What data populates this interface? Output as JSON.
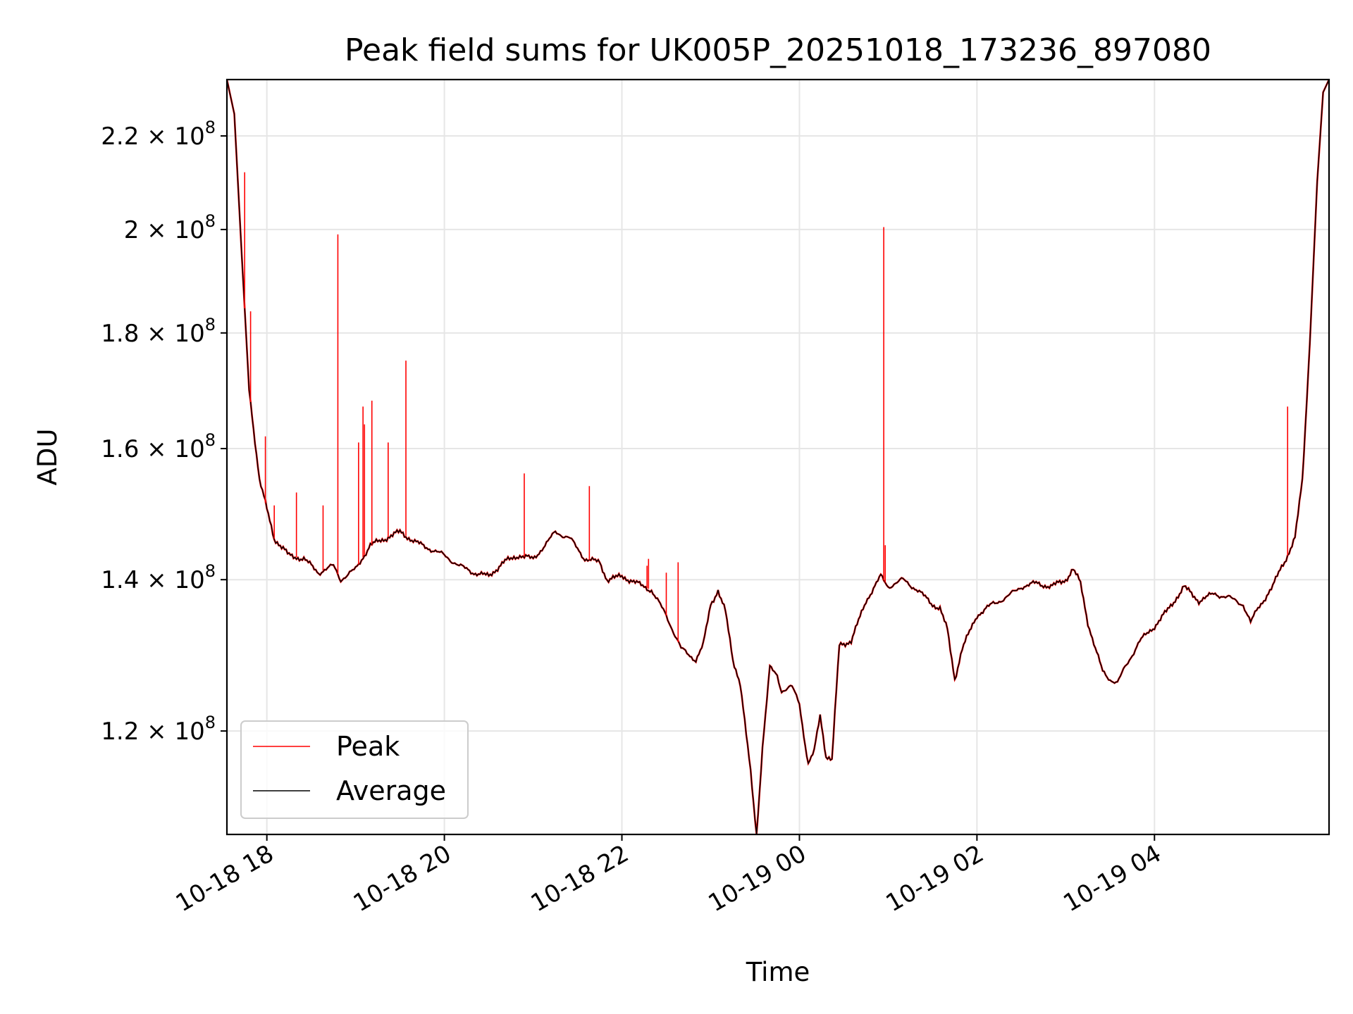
{
  "chart_data": {
    "type": "line",
    "title": "Peak field sums for UK005P_20251018_173236_897080",
    "xlabel": "Time",
    "ylabel": "ADU",
    "y_scale": "log",
    "xlim": [
      "2025-10-18 17:33",
      "2025-10-19 05:58"
    ],
    "ylim": [
      108000000,
      233000000
    ],
    "grid": true,
    "legend_position": "lower-left",
    "x_ticks": [
      {
        "t": "2025-10-18 18:00",
        "label": "10-18 18"
      },
      {
        "t": "2025-10-18 20:00",
        "label": "10-18 20"
      },
      {
        "t": "2025-10-18 22:00",
        "label": "10-18 22"
      },
      {
        "t": "2025-10-19 00:00",
        "label": "10-19 00"
      },
      {
        "t": "2025-10-19 02:00",
        "label": "10-19 02"
      },
      {
        "t": "2025-10-19 04:00",
        "label": "10-19 04"
      }
    ],
    "y_ticks": [
      {
        "value": 120000000,
        "mantissa": "1.2",
        "base": "10",
        "exp": "8"
      },
      {
        "value": 140000000,
        "mantissa": "1.4",
        "base": "10",
        "exp": "8"
      },
      {
        "value": 160000000,
        "mantissa": "1.6",
        "base": "10",
        "exp": "8"
      },
      {
        "value": 180000000,
        "mantissa": "1.8",
        "base": "10",
        "exp": "8"
      },
      {
        "value": 200000000,
        "mantissa": "2",
        "base": "10",
        "exp": "8"
      },
      {
        "value": 220000000,
        "mantissa": "2.2",
        "base": "10",
        "exp": "8"
      }
    ],
    "series": [
      {
        "name": "Average",
        "color": "#000000",
        "points": [
          [
            "2025-10-18 17:33",
            233000000
          ],
          [
            "2025-10-18 17:38",
            225000000
          ],
          [
            "2025-10-18 17:43",
            195000000
          ],
          [
            "2025-10-18 17:48",
            170000000
          ],
          [
            "2025-10-18 17:55",
            155000000
          ],
          [
            "2025-10-18 18:05",
            146000000
          ],
          [
            "2025-10-18 18:15",
            143500000
          ],
          [
            "2025-10-18 18:25",
            143000000
          ],
          [
            "2025-10-18 18:35",
            141000000
          ],
          [
            "2025-10-18 18:45",
            142000000
          ],
          [
            "2025-10-18 18:50",
            140000000
          ],
          [
            "2025-10-18 19:00",
            141500000
          ],
          [
            "2025-10-18 19:10",
            145000000
          ],
          [
            "2025-10-18 19:20",
            146000000
          ],
          [
            "2025-10-18 19:30",
            147000000
          ],
          [
            "2025-10-18 19:40",
            145500000
          ],
          [
            "2025-10-18 19:50",
            144500000
          ],
          [
            "2025-10-18 20:00",
            143500000
          ],
          [
            "2025-10-18 20:10",
            142000000
          ],
          [
            "2025-10-18 20:20",
            141000000
          ],
          [
            "2025-10-18 20:30",
            140500000
          ],
          [
            "2025-10-18 20:40",
            142500000
          ],
          [
            "2025-10-18 20:50",
            143500000
          ],
          [
            "2025-10-18 21:00",
            143000000
          ],
          [
            "2025-10-18 21:10",
            145500000
          ],
          [
            "2025-10-18 21:15",
            147000000
          ],
          [
            "2025-10-18 21:25",
            146000000
          ],
          [
            "2025-10-18 21:35",
            143000000
          ],
          [
            "2025-10-18 21:45",
            142500000
          ],
          [
            "2025-10-18 21:50",
            140000000
          ],
          [
            "2025-10-18 22:00",
            140500000
          ],
          [
            "2025-10-18 22:10",
            139500000
          ],
          [
            "2025-10-18 22:20",
            138500000
          ],
          [
            "2025-10-18 22:30",
            135000000
          ],
          [
            "2025-10-18 22:40",
            130500000
          ],
          [
            "2025-10-18 22:50",
            129000000
          ],
          [
            "2025-10-18 22:55",
            131000000
          ],
          [
            "2025-10-18 23:00",
            136500000
          ],
          [
            "2025-10-18 23:05",
            138500000
          ],
          [
            "2025-10-18 23:10",
            135500000
          ],
          [
            "2025-10-18 23:15",
            129000000
          ],
          [
            "2025-10-18 23:20",
            126000000
          ],
          [
            "2025-10-18 23:27",
            115000000
          ],
          [
            "2025-10-18 23:31",
            108000000
          ],
          [
            "2025-10-18 23:35",
            118000000
          ],
          [
            "2025-10-18 23:40",
            128000000
          ],
          [
            "2025-10-18 23:45",
            127000000
          ],
          [
            "2025-10-18 23:48",
            125000000
          ],
          [
            "2025-10-18 23:55",
            125500000
          ],
          [
            "2025-10-19 00:00",
            123500000
          ],
          [
            "2025-10-19 00:03",
            119500000
          ],
          [
            "2025-10-19 00:06",
            116000000
          ],
          [
            "2025-10-19 00:10",
            117500000
          ],
          [
            "2025-10-19 00:14",
            122000000
          ],
          [
            "2025-10-19 00:18",
            117000000
          ],
          [
            "2025-10-19 00:22",
            116500000
          ],
          [
            "2025-10-19 00:27",
            131000000
          ],
          [
            "2025-10-19 00:35",
            131500000
          ],
          [
            "2025-10-19 00:45",
            137000000
          ],
          [
            "2025-10-19 00:55",
            140500000
          ],
          [
            "2025-10-19 01:00",
            139000000
          ],
          [
            "2025-10-19 01:10",
            140000000
          ],
          [
            "2025-10-19 01:20",
            138500000
          ],
          [
            "2025-10-19 01:30",
            136500000
          ],
          [
            "2025-10-19 01:35",
            136000000
          ],
          [
            "2025-10-19 01:40",
            133000000
          ],
          [
            "2025-10-19 01:45",
            126500000
          ],
          [
            "2025-10-19 01:50",
            130500000
          ],
          [
            "2025-10-19 02:00",
            135000000
          ],
          [
            "2025-10-19 02:10",
            136500000
          ],
          [
            "2025-10-19 02:20",
            137500000
          ],
          [
            "2025-10-19 02:30",
            139000000
          ],
          [
            "2025-10-19 02:40",
            139500000
          ],
          [
            "2025-10-19 02:50",
            139000000
          ],
          [
            "2025-10-19 03:00",
            140000000
          ],
          [
            "2025-10-19 03:05",
            141500000
          ],
          [
            "2025-10-19 03:10",
            139500000
          ],
          [
            "2025-10-19 03:15",
            134000000
          ],
          [
            "2025-10-19 03:20",
            130500000
          ],
          [
            "2025-10-19 03:25",
            127500000
          ],
          [
            "2025-10-19 03:30",
            126500000
          ],
          [
            "2025-10-19 03:35",
            126000000
          ],
          [
            "2025-10-19 03:40",
            128000000
          ],
          [
            "2025-10-19 03:50",
            131500000
          ],
          [
            "2025-10-19 04:00",
            133500000
          ],
          [
            "2025-10-19 04:10",
            136000000
          ],
          [
            "2025-10-19 04:20",
            139000000
          ],
          [
            "2025-10-19 04:30",
            137000000
          ],
          [
            "2025-10-19 04:40",
            138000000
          ],
          [
            "2025-10-19 04:50",
            137500000
          ],
          [
            "2025-10-19 05:00",
            136500000
          ],
          [
            "2025-10-19 05:05",
            134000000
          ],
          [
            "2025-10-19 05:10",
            136000000
          ],
          [
            "2025-10-19 05:20",
            139000000
          ],
          [
            "2025-10-19 05:25",
            141500000
          ],
          [
            "2025-10-19 05:30",
            143500000
          ],
          [
            "2025-10-19 05:35",
            146000000
          ],
          [
            "2025-10-19 05:40",
            155000000
          ],
          [
            "2025-10-19 05:45",
            178000000
          ],
          [
            "2025-10-19 05:50",
            210000000
          ],
          [
            "2025-10-19 05:54",
            230000000
          ],
          [
            "2025-10-19 05:58",
            233000000
          ]
        ]
      },
      {
        "name": "Peak",
        "color": "#ff0000",
        "spikes": [
          [
            "2025-10-18 17:45",
            212000000
          ],
          [
            "2025-10-18 17:49",
            184000000
          ],
          [
            "2025-10-18 17:59",
            162000000
          ],
          [
            "2025-10-18 18:05",
            151000000
          ],
          [
            "2025-10-18 18:20",
            153000000
          ],
          [
            "2025-10-18 18:38",
            151000000
          ],
          [
            "2025-10-18 18:48",
            199000000
          ],
          [
            "2025-10-18 19:02",
            161000000
          ],
          [
            "2025-10-18 19:05",
            167000000
          ],
          [
            "2025-10-18 19:06",
            164000000
          ],
          [
            "2025-10-18 19:11",
            168000000
          ],
          [
            "2025-10-18 19:22",
            161000000
          ],
          [
            "2025-10-18 19:34",
            175000000
          ],
          [
            "2025-10-18 20:54",
            156000000
          ],
          [
            "2025-10-18 21:38",
            154000000
          ],
          [
            "2025-10-18 22:17",
            142000000
          ],
          [
            "2025-10-18 22:18",
            143000000
          ],
          [
            "2025-10-18 22:30",
            141000000
          ],
          [
            "2025-10-18 22:38",
            142500000
          ],
          [
            "2025-10-19 00:57",
            200500000
          ],
          [
            "2025-10-19 00:58",
            145000000
          ],
          [
            "2025-10-19 05:30",
            167000000
          ]
        ]
      }
    ]
  }
}
